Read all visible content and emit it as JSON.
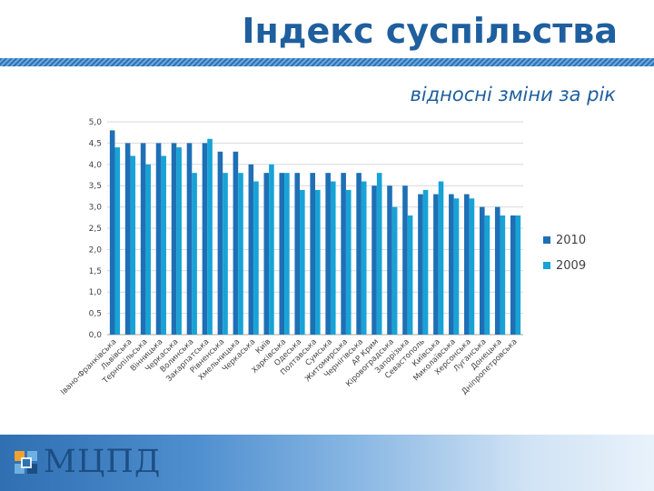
{
  "slide": {
    "title": "Індекс суспільства",
    "subtitle": "відносні зміни за рік",
    "logo_text": "МЦПД"
  },
  "colors": {
    "title": "#1f5f9e",
    "series_2010": "#1f6fb5",
    "series_2009": "#17a3d6",
    "gridline": "#d9d9d9"
  },
  "chart_data": {
    "type": "bar",
    "categories": [
      "Івано-Франківська",
      "Львівська",
      "Тернопільська",
      "Вінницька",
      "Черкаська",
      "Волинська",
      "Закарпатська",
      "Рівненська",
      "Хмельницька",
      "Черкаська",
      "Київ",
      "Харківська",
      "Одеська",
      "Полтавська",
      "Сумська",
      "Житомирська",
      "Чернігівська",
      "АР Крим",
      "Кіровоградська",
      "Запорізька",
      "Севастополь",
      "Київська",
      "Миколаївська",
      "Херсонська",
      "Луганська",
      "Донецька",
      "Дніпропетровська"
    ],
    "series": [
      {
        "name": "2010",
        "values": [
          4.8,
          4.5,
          4.5,
          4.5,
          4.5,
          4.5,
          4.5,
          4.3,
          4.3,
          4.0,
          3.8,
          3.8,
          3.8,
          3.8,
          3.8,
          3.8,
          3.8,
          3.5,
          3.5,
          3.5,
          3.3,
          3.3,
          3.3,
          3.3,
          3.0,
          3.0,
          2.8
        ]
      },
      {
        "name": "2009",
        "values": [
          4.4,
          4.2,
          4.0,
          4.2,
          4.4,
          3.8,
          4.6,
          3.8,
          3.8,
          3.6,
          4.0,
          3.8,
          3.4,
          3.4,
          3.6,
          3.4,
          3.6,
          3.8,
          3.0,
          2.8,
          3.4,
          3.6,
          3.2,
          3.2,
          2.8,
          2.8,
          2.8
        ]
      }
    ],
    "yticks": [
      "0,0",
      "0,5",
      "1,0",
      "1,5",
      "2,0",
      "2,5",
      "3,0",
      "3,5",
      "4,0",
      "4,5",
      "5,0"
    ],
    "ylim": [
      0,
      5
    ],
    "grid": true,
    "legend_position": "right"
  }
}
